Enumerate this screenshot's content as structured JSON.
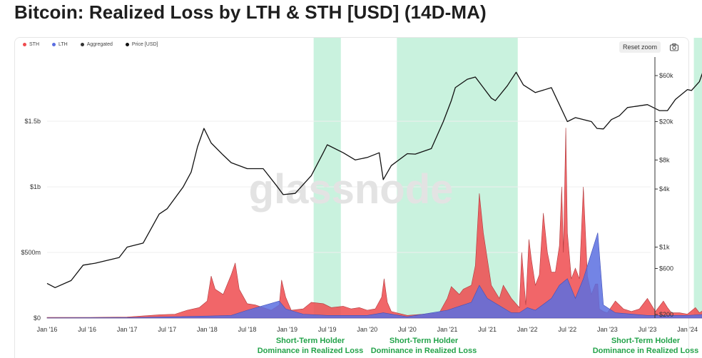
{
  "page": {
    "title": "Bitcoin: Realized Loss by LTH & STH [USD] (14D-MA)"
  },
  "toolbar": {
    "reset_zoom": "Reset zoom",
    "camera_icon": "camera-icon"
  },
  "legend": [
    {
      "label": "STH",
      "color": "#ef4b4f"
    },
    {
      "label": "LTH",
      "color": "#5b6ee1"
    },
    {
      "label": "Aggregated",
      "color": "#333333"
    },
    {
      "label": "Price [USD]",
      "color": "#111111"
    }
  ],
  "annotations": [
    {
      "line1": "Short-Term Holder",
      "line2": "Dominance in Realized Loss"
    },
    {
      "line1": "Short-Term Holder",
      "line2": "Dominance in Realized Loss"
    },
    {
      "line1": "Short-Term Holder",
      "line2": "Dominance in Realized Loss"
    }
  ],
  "watermark": "glassnode",
  "colors": {
    "sth": "#ef4b4f",
    "lth": "#5b6ee1",
    "overlap": "#8b6a66",
    "price": "#111111",
    "band": "#bff0d8",
    "annotation": "#23a34a"
  },
  "chart_data": {
    "type": "area",
    "title": "Bitcoin: Realized Loss by LTH & STH [USD] (14D-MA)",
    "x_ticks": [
      "Jan '16",
      "Jul '16",
      "Jan '17",
      "Jul '17",
      "Jan '18",
      "Jul '18",
      "Jan '19",
      "Jul '19",
      "Jan '20",
      "Jul '20",
      "Jan '21",
      "Jul '21",
      "Jan '22",
      "Jul '22",
      "Jan '23",
      "Jul '23",
      "Jan '24"
    ],
    "y_left": {
      "ticks": [
        "$0",
        "$500m",
        "$1b",
        "$1.5b"
      ],
      "values": [
        0,
        500000000,
        1000000000,
        1500000000
      ],
      "range": [
        0,
        1700000000
      ]
    },
    "y_right": {
      "scale": "log",
      "ticks": [
        "$200",
        "$600",
        "$1k",
        "$4k",
        "$8k",
        "$20k",
        "$60k"
      ],
      "values": [
        200,
        600,
        1000,
        4000,
        8000,
        20000,
        60000
      ]
    },
    "highlight_bands": [
      {
        "from": 2019.33,
        "to": 2019.67
      },
      {
        "from": 2020.37,
        "to": 2021.88
      },
      {
        "from": 2024.08,
        "to": 2024.25
      }
    ],
    "series": [
      {
        "name": "STH",
        "x": [
          2016.0,
          2016.5,
          2017.0,
          2017.4,
          2017.6,
          2017.75,
          2017.9,
          2018.0,
          2018.05,
          2018.1,
          2018.2,
          2018.3,
          2018.35,
          2018.4,
          2018.5,
          2018.6,
          2018.7,
          2018.8,
          2018.9,
          2018.93,
          2018.98,
          2019.05,
          2019.2,
          2019.3,
          2019.45,
          2019.55,
          2019.7,
          2019.8,
          2019.9,
          2020.0,
          2020.1,
          2020.18,
          2020.21,
          2020.25,
          2020.3,
          2020.5,
          2020.7,
          2020.9,
          2021.0,
          2021.05,
          2021.15,
          2021.2,
          2021.3,
          2021.35,
          2021.4,
          2021.45,
          2021.55,
          2021.65,
          2021.7,
          2021.8,
          2021.9,
          2021.93,
          2021.98,
          2022.02,
          2022.05,
          2022.1,
          2022.15,
          2022.2,
          2022.25,
          2022.3,
          2022.35,
          2022.4,
          2022.43,
          2022.45,
          2022.48,
          2022.5,
          2022.55,
          2022.6,
          2022.65,
          2022.7,
          2022.75,
          2022.8,
          2022.85,
          2022.88,
          2022.9,
          2022.95,
          2023.0,
          2023.1,
          2023.2,
          2023.3,
          2023.4,
          2023.5,
          2023.6,
          2023.7,
          2023.75,
          2023.8,
          2023.9,
          2024.0,
          2024.1,
          2024.15,
          2024.2,
          2024.25
        ],
        "values": [
          5000000,
          5000000,
          8000000,
          25000000,
          30000000,
          60000000,
          80000000,
          130000000,
          320000000,
          220000000,
          180000000,
          330000000,
          420000000,
          220000000,
          110000000,
          100000000,
          80000000,
          60000000,
          100000000,
          290000000,
          160000000,
          60000000,
          70000000,
          120000000,
          110000000,
          80000000,
          90000000,
          70000000,
          80000000,
          60000000,
          70000000,
          160000000,
          300000000,
          120000000,
          50000000,
          20000000,
          30000000,
          40000000,
          150000000,
          240000000,
          180000000,
          220000000,
          250000000,
          400000000,
          950000000,
          650000000,
          250000000,
          150000000,
          250000000,
          150000000,
          80000000,
          500000000,
          100000000,
          600000000,
          450000000,
          250000000,
          330000000,
          800000000,
          500000000,
          350000000,
          350000000,
          550000000,
          1000000000,
          500000000,
          1450000000,
          650000000,
          300000000,
          380000000,
          300000000,
          1000000000,
          320000000,
          180000000,
          260000000,
          260000000,
          70000000,
          50000000,
          40000000,
          130000000,
          70000000,
          50000000,
          70000000,
          150000000,
          50000000,
          130000000,
          80000000,
          40000000,
          40000000,
          30000000,
          80000000,
          40000000,
          60000000,
          150000000
        ]
      },
      {
        "name": "LTH",
        "x": [
          2016.0,
          2017.0,
          2018.0,
          2018.3,
          2018.5,
          2018.9,
          2018.98,
          2019.2,
          2019.5,
          2020.0,
          2020.2,
          2020.5,
          2021.0,
          2021.3,
          2021.4,
          2021.5,
          2021.8,
          2021.9,
          2022.0,
          2022.1,
          2022.3,
          2022.4,
          2022.5,
          2022.6,
          2022.7,
          2022.88,
          2022.95,
          2023.1,
          2023.5,
          2024.0,
          2024.25
        ],
        "values": [
          1000000,
          3000000,
          15000000,
          20000000,
          60000000,
          130000000,
          70000000,
          30000000,
          20000000,
          20000000,
          40000000,
          10000000,
          60000000,
          120000000,
          250000000,
          150000000,
          40000000,
          40000000,
          80000000,
          60000000,
          150000000,
          250000000,
          300000000,
          150000000,
          300000000,
          650000000,
          100000000,
          40000000,
          20000000,
          20000000,
          30000000
        ]
      },
      {
        "name": "Price [USD]",
        "x": [
          2016.0,
          2016.1,
          2016.3,
          2016.45,
          2016.6,
          2016.9,
          2017.0,
          2017.2,
          2017.4,
          2017.5,
          2017.7,
          2017.8,
          2017.88,
          2017.96,
          2018.05,
          2018.2,
          2018.3,
          2018.5,
          2018.7,
          2018.87,
          2018.95,
          2019.1,
          2019.3,
          2019.45,
          2019.5,
          2019.7,
          2019.85,
          2020.0,
          2020.15,
          2020.2,
          2020.3,
          2020.5,
          2020.6,
          2020.8,
          2020.95,
          2021.05,
          2021.1,
          2021.25,
          2021.35,
          2021.45,
          2021.55,
          2021.6,
          2021.75,
          2021.86,
          2021.95,
          2022.1,
          2022.3,
          2022.4,
          2022.5,
          2022.6,
          2022.8,
          2022.87,
          2022.95,
          2023.05,
          2023.15,
          2023.25,
          2023.5,
          2023.65,
          2023.75,
          2023.85,
          2024.0,
          2024.05,
          2024.15,
          2024.2,
          2024.25
        ],
        "values": [
          420,
          380,
          450,
          650,
          680,
          780,
          1000,
          1100,
          2200,
          2500,
          4200,
          6000,
          11000,
          17000,
          12000,
          9000,
          7500,
          6500,
          6500,
          4300,
          3500,
          3600,
          5500,
          9500,
          11500,
          9500,
          8000,
          8500,
          9500,
          5000,
          7000,
          9300,
          9200,
          10500,
          20000,
          33000,
          45000,
          55000,
          58000,
          45000,
          35000,
          33000,
          47000,
          65000,
          48000,
          40000,
          45000,
          30000,
          20000,
          22000,
          20000,
          17000,
          16800,
          21000,
          23000,
          28000,
          30000,
          26000,
          26000,
          34000,
          43000,
          42000,
          52000,
          68000,
          65000
        ]
      }
    ]
  }
}
